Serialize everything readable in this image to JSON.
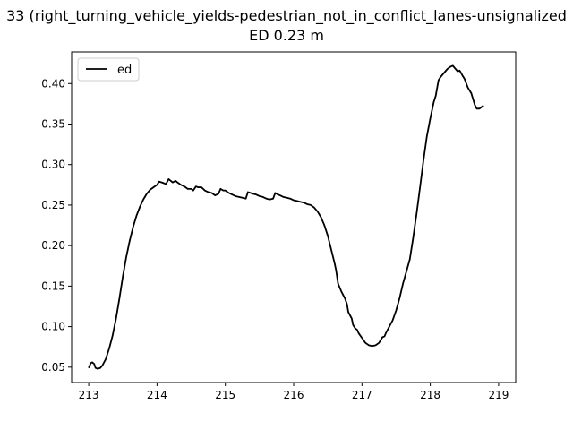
{
  "chart_data": {
    "type": "line",
    "title_line_1": "33 (right_turning_vehicle_yields-pedestrian_not_in_conflict_lanes-unsignalized",
    "title_line_2": "ED 0.23 m",
    "xlabel": "",
    "ylabel": "",
    "xlim": [
      212.75,
      219.25
    ],
    "ylim": [
      0.031,
      0.439
    ],
    "xticks": [
      "213",
      "214",
      "215",
      "216",
      "217",
      "218",
      "219"
    ],
    "yticks": [
      "0.05",
      "0.10",
      "0.15",
      "0.20",
      "0.25",
      "0.30",
      "0.35",
      "0.40"
    ],
    "grid": false,
    "legend_position": "top-left",
    "series": [
      {
        "name": "ed",
        "color": "#000000",
        "points": [
          [
            213.0,
            0.049
          ],
          [
            213.03,
            0.055
          ],
          [
            213.05,
            0.056
          ],
          [
            213.08,
            0.054
          ],
          [
            213.1,
            0.049
          ],
          [
            213.13,
            0.048
          ],
          [
            213.17,
            0.049
          ],
          [
            213.2,
            0.052
          ],
          [
            213.25,
            0.06
          ],
          [
            213.3,
            0.073
          ],
          [
            213.35,
            0.089
          ],
          [
            213.4,
            0.11
          ],
          [
            213.45,
            0.135
          ],
          [
            213.5,
            0.162
          ],
          [
            213.55,
            0.186
          ],
          [
            213.6,
            0.206
          ],
          [
            213.65,
            0.223
          ],
          [
            213.7,
            0.237
          ],
          [
            213.75,
            0.248
          ],
          [
            213.8,
            0.257
          ],
          [
            213.85,
            0.264
          ],
          [
            213.9,
            0.269
          ],
          [
            213.95,
            0.272
          ],
          [
            214.0,
            0.275
          ],
          [
            214.03,
            0.279
          ],
          [
            214.07,
            0.278
          ],
          [
            214.1,
            0.277
          ],
          [
            214.13,
            0.276
          ],
          [
            214.17,
            0.282
          ],
          [
            214.2,
            0.28
          ],
          [
            214.23,
            0.278
          ],
          [
            214.27,
            0.28
          ],
          [
            214.3,
            0.278
          ],
          [
            214.35,
            0.275
          ],
          [
            214.4,
            0.273
          ],
          [
            214.45,
            0.27
          ],
          [
            214.5,
            0.27
          ],
          [
            214.53,
            0.268
          ],
          [
            214.57,
            0.273
          ],
          [
            214.6,
            0.272
          ],
          [
            214.65,
            0.272
          ],
          [
            214.7,
            0.268
          ],
          [
            214.75,
            0.266
          ],
          [
            214.8,
            0.265
          ],
          [
            214.85,
            0.262
          ],
          [
            214.9,
            0.264
          ],
          [
            214.93,
            0.27
          ],
          [
            214.97,
            0.268
          ],
          [
            215.0,
            0.268
          ],
          [
            215.05,
            0.265
          ],
          [
            215.1,
            0.263
          ],
          [
            215.15,
            0.261
          ],
          [
            215.2,
            0.26
          ],
          [
            215.25,
            0.259
          ],
          [
            215.3,
            0.258
          ],
          [
            215.33,
            0.266
          ],
          [
            215.37,
            0.265
          ],
          [
            215.4,
            0.264
          ],
          [
            215.45,
            0.263
          ],
          [
            215.5,
            0.261
          ],
          [
            215.55,
            0.26
          ],
          [
            215.6,
            0.258
          ],
          [
            215.65,
            0.257
          ],
          [
            215.7,
            0.258
          ],
          [
            215.73,
            0.265
          ],
          [
            215.77,
            0.263
          ],
          [
            215.8,
            0.262
          ],
          [
            215.85,
            0.26
          ],
          [
            215.9,
            0.259
          ],
          [
            215.95,
            0.258
          ],
          [
            216.0,
            0.256
          ],
          [
            216.05,
            0.255
          ],
          [
            216.1,
            0.254
          ],
          [
            216.15,
            0.253
          ],
          [
            216.2,
            0.251
          ],
          [
            216.25,
            0.25
          ],
          [
            216.3,
            0.247
          ],
          [
            216.35,
            0.242
          ],
          [
            216.4,
            0.235
          ],
          [
            216.45,
            0.225
          ],
          [
            216.5,
            0.212
          ],
          [
            216.55,
            0.195
          ],
          [
            216.6,
            0.178
          ],
          [
            216.62,
            0.17
          ],
          [
            216.65,
            0.153
          ],
          [
            216.7,
            0.143
          ],
          [
            216.75,
            0.135
          ],
          [
            216.78,
            0.128
          ],
          [
            216.8,
            0.118
          ],
          [
            216.85,
            0.11
          ],
          [
            216.87,
            0.102
          ],
          [
            216.9,
            0.098
          ],
          [
            216.93,
            0.096
          ],
          [
            216.95,
            0.092
          ],
          [
            217.0,
            0.086
          ],
          [
            217.05,
            0.08
          ],
          [
            217.1,
            0.077
          ],
          [
            217.15,
            0.076
          ],
          [
            217.2,
            0.077
          ],
          [
            217.25,
            0.08
          ],
          [
            217.3,
            0.087
          ],
          [
            217.33,
            0.088
          ],
          [
            217.35,
            0.092
          ],
          [
            217.4,
            0.1
          ],
          [
            217.45,
            0.108
          ],
          [
            217.5,
            0.12
          ],
          [
            217.55,
            0.135
          ],
          [
            217.6,
            0.153
          ],
          [
            217.65,
            0.168
          ],
          [
            217.7,
            0.183
          ],
          [
            217.75,
            0.21
          ],
          [
            217.8,
            0.24
          ],
          [
            217.85,
            0.272
          ],
          [
            217.9,
            0.305
          ],
          [
            217.95,
            0.335
          ],
          [
            218.0,
            0.357
          ],
          [
            218.05,
            0.377
          ],
          [
            218.08,
            0.385
          ],
          [
            218.12,
            0.404
          ],
          [
            218.15,
            0.408
          ],
          [
            218.2,
            0.413
          ],
          [
            218.25,
            0.418
          ],
          [
            218.3,
            0.421
          ],
          [
            218.33,
            0.422
          ],
          [
            218.37,
            0.418
          ],
          [
            218.4,
            0.415
          ],
          [
            218.43,
            0.416
          ],
          [
            218.47,
            0.41
          ],
          [
            218.5,
            0.406
          ],
          [
            218.55,
            0.395
          ],
          [
            218.6,
            0.388
          ],
          [
            218.65,
            0.374
          ],
          [
            218.68,
            0.369
          ],
          [
            218.72,
            0.369
          ],
          [
            218.75,
            0.371
          ],
          [
            218.78,
            0.373
          ]
        ]
      }
    ]
  }
}
